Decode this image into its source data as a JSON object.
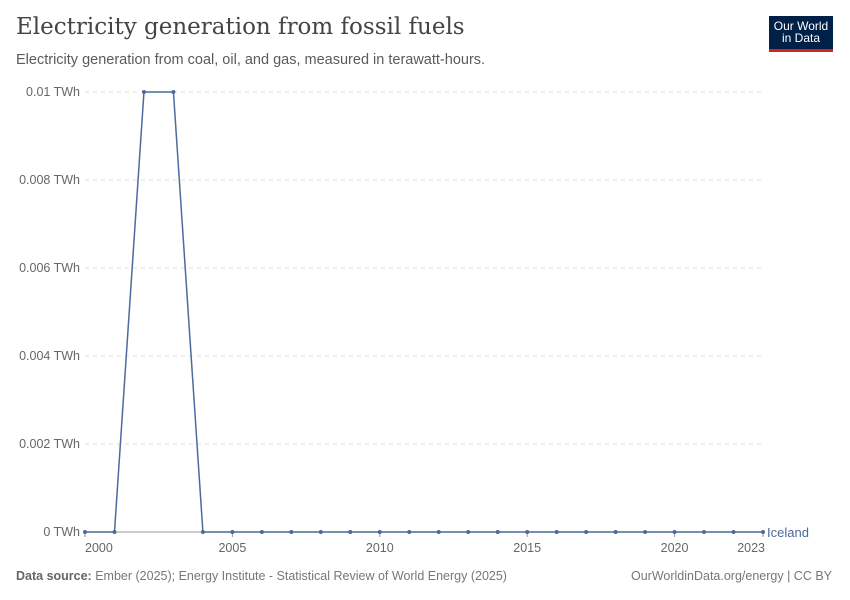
{
  "header": {
    "title": "Electricity generation from fossil fuels",
    "subtitle": "Electricity generation from coal, oil, and gas, measured in terawatt-hours.",
    "logo": "Our World in Data"
  },
  "footer": {
    "source_label": "Data source:",
    "source": "Ember (2025); Energy Institute - Statistical Review of World Energy (2025)",
    "credit": "OurWorldinData.org/energy | CC BY"
  },
  "chart_data": {
    "type": "line",
    "title": "Electricity generation from fossil fuels",
    "xlabel": "",
    "ylabel": "",
    "ylim": [
      0,
      0.01
    ],
    "xlim": [
      2000,
      2023
    ],
    "grid": "horizontal dashed",
    "y_ticks": [
      {
        "v": 0,
        "label": "0 TWh"
      },
      {
        "v": 0.002,
        "label": "0.002 TWh"
      },
      {
        "v": 0.004,
        "label": "0.004 TWh"
      },
      {
        "v": 0.006,
        "label": "0.006 TWh"
      },
      {
        "v": 0.008,
        "label": "0.008 TWh"
      },
      {
        "v": 0.01,
        "label": "0.01 TWh"
      }
    ],
    "x_ticks": [
      2000,
      2005,
      2010,
      2015,
      2020,
      2023
    ],
    "series": [
      {
        "name": "Iceland",
        "color": "#4c6a9c",
        "x": [
          2000,
          2001,
          2002,
          2003,
          2004,
          2005,
          2006,
          2007,
          2008,
          2009,
          2010,
          2011,
          2012,
          2013,
          2014,
          2015,
          2016,
          2017,
          2018,
          2019,
          2020,
          2021,
          2022,
          2023
        ],
        "values": [
          0,
          0,
          0.01,
          0.01,
          0,
          0,
          0,
          0,
          0,
          0,
          0,
          0,
          0,
          0,
          0,
          0,
          0,
          0,
          0,
          0,
          0,
          0,
          0,
          0
        ]
      }
    ]
  }
}
